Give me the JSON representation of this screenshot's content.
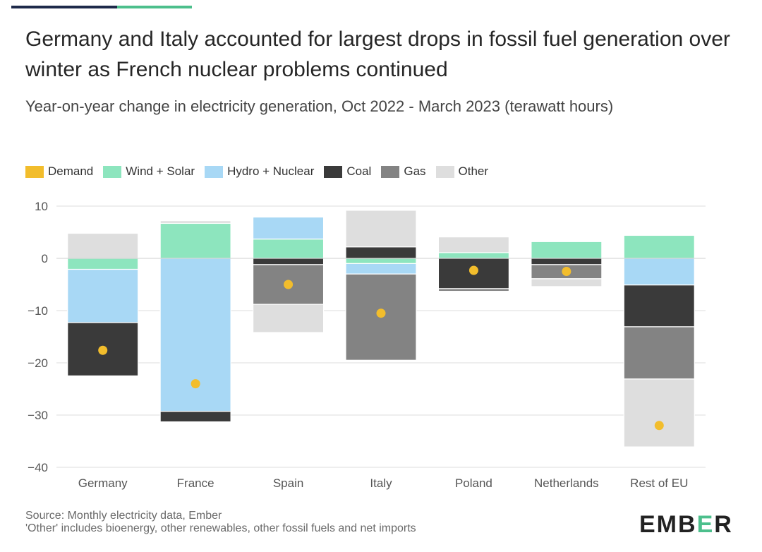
{
  "title": "Germany and Italy accounted for largest drops in fossil fuel generation over winter as French nuclear problems continued",
  "subtitle": "Year-on-year change in electricity generation, Oct 2022 - March 2023 (terawatt hours)",
  "source_line1": "Source: Monthly electricity data, Ember",
  "source_line2": "'Other' includes bioenergy, other renewables, other fossil fuels and net imports",
  "logo": {
    "left": "EMB",
    "mid": "E",
    "right": "R"
  },
  "legend": [
    {
      "label": "Demand",
      "color": "#f2bd2c"
    },
    {
      "label": "Wind + Solar",
      "color": "#8de5be"
    },
    {
      "label": "Hydro + Nuclear",
      "color": "#a8d8f5"
    },
    {
      "label": "Coal",
      "color": "#3a3a3a"
    },
    {
      "label": "Gas",
      "color": "#838383"
    },
    {
      "label": "Other",
      "color": "#dedede"
    }
  ],
  "chart_data": {
    "type": "bar",
    "stacked": true,
    "title": "Germany and Italy accounted for largest drops in fossil fuel generation over winter as French nuclear problems continued",
    "ylabel": "",
    "xlabel": "",
    "ylim": [
      -40,
      10
    ],
    "yticks": [
      10,
      0,
      -10,
      -20,
      -30,
      -40
    ],
    "grid": true,
    "legend_position": "top",
    "categories": [
      "Germany",
      "France",
      "Spain",
      "Italy",
      "Poland",
      "Netherlands",
      "Rest of EU"
    ],
    "series": [
      {
        "name": "Wind + Solar",
        "color": "#8de5be",
        "values": [
          -2.1,
          6.7,
          3.7,
          -1.0,
          1.1,
          3.2,
          4.4
        ]
      },
      {
        "name": "Hydro + Nuclear",
        "color": "#a8d8f5",
        "values": [
          -10.2,
          -29.3,
          4.2,
          -2.0,
          0.0,
          0.0,
          -5.1
        ]
      },
      {
        "name": "Coal",
        "color": "#3a3a3a",
        "values": [
          -10.2,
          -2.0,
          -1.2,
          2.2,
          -5.8,
          -1.2,
          -8.0
        ]
      },
      {
        "name": "Gas",
        "color": "#838383",
        "values": [
          0.0,
          0.0,
          -7.6,
          -16.5,
          -0.5,
          -2.7,
          -10.0
        ]
      },
      {
        "name": "Other",
        "color": "#dedede",
        "values": [
          4.8,
          0.5,
          -5.4,
          7.0,
          3.0,
          -1.5,
          -13.0
        ]
      }
    ],
    "demand": {
      "name": "Demand",
      "color": "#f2bd2c",
      "values": [
        -17.6,
        -24.0,
        -5.0,
        -10.5,
        -2.3,
        -2.5,
        -32.0
      ]
    }
  }
}
